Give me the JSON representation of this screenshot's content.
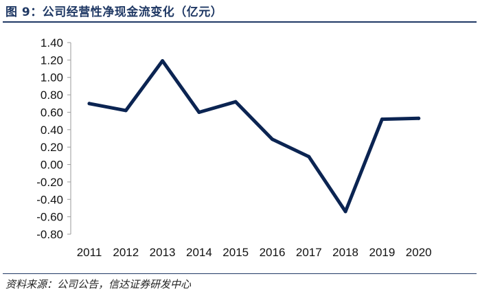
{
  "figure": {
    "title": "图 9：公司经营性净现金流变化（亿元）",
    "source": "资料来源：公司公告，信达证券研发中心"
  },
  "chart_data": {
    "type": "line",
    "title": "",
    "xlabel": "",
    "ylabel": "",
    "x": [
      "2011",
      "2012",
      "2013",
      "2014",
      "2015",
      "2016",
      "2017",
      "2018",
      "2019",
      "2020"
    ],
    "series": [
      {
        "values": [
          0.7,
          0.62,
          1.19,
          0.6,
          0.72,
          0.29,
          0.09,
          -0.54,
          0.52,
          0.53
        ]
      }
    ],
    "ylim": [
      -0.8,
      1.4
    ],
    "yticks": [
      "1.40",
      "1.20",
      "1.00",
      "0.80",
      "0.60",
      "0.40",
      "0.20",
      "0.00",
      "-0.20",
      "-0.40",
      "-0.60",
      "-0.80"
    ],
    "ytick_values": [
      1.4,
      1.2,
      1.0,
      0.8,
      0.6,
      0.4,
      0.2,
      0.0,
      -0.2,
      -0.4,
      -0.6,
      -0.8
    ],
    "grid": false,
    "legend": "none",
    "line_color": "#0b2452"
  }
}
